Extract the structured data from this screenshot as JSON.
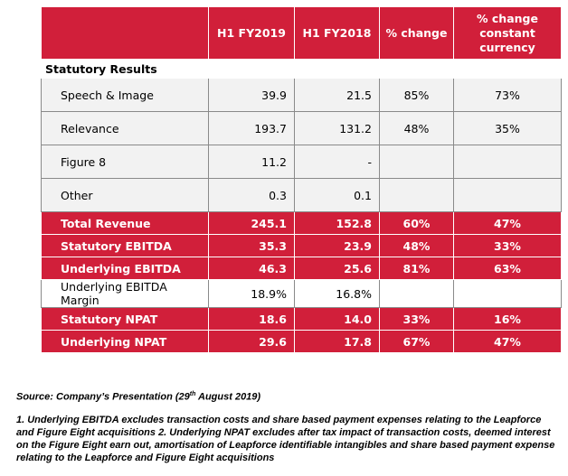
{
  "table": {
    "headers": [
      "",
      "H1 FY2019",
      "H1 FY2018",
      "% change",
      "% change constant currency"
    ],
    "header_lines": {
      "h4": [
        "% change",
        "constant",
        "currency"
      ]
    },
    "section": "Statutory Results",
    "rows": [
      {
        "label": "Speech & Image",
        "fy19": "39.9",
        "fy18": "21.5",
        "chg": "85%",
        "cc": "73%",
        "style": "grey"
      },
      {
        "label": "Relevance",
        "fy19": "193.7",
        "fy18": "131.2",
        "chg": "48%",
        "cc": "35%",
        "style": "grey"
      },
      {
        "label": "Figure 8",
        "fy19": "11.2",
        "fy18": "-",
        "chg": "",
        "cc": "",
        "style": "grey"
      },
      {
        "label": "Other",
        "fy19": "0.3",
        "fy18": "0.1",
        "chg": "",
        "cc": "",
        "style": "grey"
      },
      {
        "label": "Total Revenue",
        "fy19": "245.1",
        "fy18": "152.8",
        "chg": "60%",
        "cc": "47%",
        "style": "red"
      },
      {
        "label": "Statutory EBITDA",
        "fy19": "35.3",
        "fy18": "23.9",
        "chg": "48%",
        "cc": "33%",
        "style": "red"
      },
      {
        "label": "Underlying EBITDA",
        "fy19": "46.3",
        "fy18": "25.6",
        "chg": "81%",
        "cc": "63%",
        "style": "red"
      },
      {
        "label": "Underlying EBITDA Margin",
        "fy19": "18.9%",
        "fy18": "16.8%",
        "chg": "",
        "cc": "",
        "style": "white"
      },
      {
        "label": "Statutory NPAT",
        "fy19": "18.6",
        "fy18": "14.0",
        "chg": "33%",
        "cc": "16%",
        "style": "red"
      },
      {
        "label": "Underlying NPAT",
        "fy19": "29.6",
        "fy18": "17.8",
        "chg": "67%",
        "cc": "47%",
        "style": "red"
      }
    ]
  },
  "source": {
    "prefix": "Source: Company’s Presentation (29",
    "sup": "th",
    "suffix": " August 2019)"
  },
  "notes": "1. Underlying EBITDA excludes transaction costs and share based payment expenses relating to the Leapforce and Figure Eight acquisitions 2. Underlying NPAT excludes after tax impact of transaction costs, deemed interest on the Figure Eight earn out, amortisation of Leapforce identifiable intangibles and share based payment expense relating to the Leapforce and Figure Eight acquisitions"
}
